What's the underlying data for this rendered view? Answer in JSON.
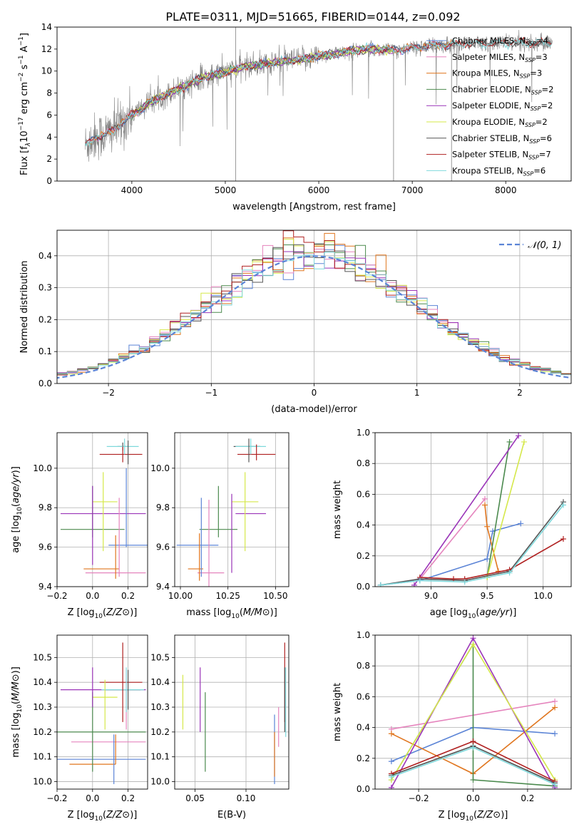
{
  "title": "PLATE=0311, MJD=51665, FIBERID=0144, z=0.092",
  "colors": {
    "Chabrier MILES": "#5b84d6",
    "Salpeter MILES": "#e584bd",
    "Kroupa MILES": "#e0761f",
    "Chabrier ELODIE": "#4b8a4e",
    "Salpeter ELODIE": "#9a34b8",
    "Kroupa ELODIE": "#d5e84a",
    "Chabrier STELIB": "#555555",
    "Salpeter STELIB": "#b02020",
    "Kroupa STELIB": "#7fd9dc",
    "normal": "#5b84d6",
    "spectrum": "#808080"
  },
  "chart_data": [
    {
      "id": "spectrum",
      "type": "line",
      "xlabel": "wavelength [Angstrom, rest frame]",
      "ylabel_pre": "Flux [f",
      "ylabel_sub": "λ",
      "ylabel_mid": "10",
      "ylabel_sup1": "−17",
      "ylabel_mid2": " erg cm",
      "ylabel_sup2": "−2",
      "ylabel_mid3": " s",
      "ylabel_sup3": "−1",
      "ylabel_mid4": " A",
      "ylabel_sup4": "−1",
      "ylabel_end": "]",
      "xlim": [
        3200,
        8700
      ],
      "ylim": [
        0,
        14
      ],
      "xticks": [
        4000,
        5000,
        6000,
        7000,
        8000
      ],
      "yticks": [
        0,
        2,
        4,
        6,
        8,
        10,
        12,
        14
      ],
      "legend": [
        {
          "name": "Chabrier MILES",
          "n": "4"
        },
        {
          "name": "Salpeter MILES",
          "n": "3"
        },
        {
          "name": "Kroupa MILES",
          "n": "3"
        },
        {
          "name": "Chabrier ELODIE",
          "n": "2"
        },
        {
          "name": "Salpeter ELODIE",
          "n": "2"
        },
        {
          "name": "Kroupa ELODIE",
          "n": "2"
        },
        {
          "name": "Chabrier STELIB",
          "n": "6"
        },
        {
          "name": "Salpeter STELIB",
          "n": "7"
        },
        {
          "name": "Kroupa STELIB",
          "n": "6"
        }
      ],
      "legend_n_prefix": "N",
      "legend_n_sub": "SSP",
      "legend_placement": "right",
      "series_profile": {
        "wavelength": [
          3500,
          3600,
          3700,
          3800,
          3900,
          4000,
          4200,
          4400,
          4600,
          4800,
          5000,
          5200,
          5400,
          5600,
          5800,
          6000,
          6200,
          6400,
          6600,
          6800,
          7000,
          7200,
          7400,
          7600,
          7800,
          8000,
          8200,
          8500
        ],
        "flux": [
          3.2,
          4.0,
          4.2,
          4.6,
          5.3,
          6.0,
          7.2,
          8.0,
          8.8,
          9.5,
          9.9,
          10.4,
          10.6,
          10.9,
          11.0,
          11.4,
          11.6,
          11.9,
          12.0,
          11.9,
          12.1,
          12.3,
          12.4,
          12.5,
          12.5,
          12.6,
          12.6,
          12.6
        ]
      },
      "spikes": [
        {
          "x": 5110,
          "y0": 0,
          "y1": 14
        },
        {
          "x": 6800,
          "y0": 0,
          "y1": 12
        },
        {
          "x": 7420,
          "y0": 0,
          "y1": 12.4
        }
      ]
    },
    {
      "id": "residuals",
      "type": "histogram",
      "xlabel": "(data-model)/error",
      "ylabel": "Normed distribution",
      "xlim": [
        -2.5,
        2.5
      ],
      "ylim": [
        0,
        0.48
      ],
      "xticks": [
        -2,
        -1,
        0,
        1,
        2
      ],
      "yticks": [
        0,
        0.1,
        0.2,
        0.3,
        0.4
      ],
      "grid": true,
      "legend_label": "𝒩(0, 1)",
      "legend_placement": "top-right",
      "bin_width": 0.1
    },
    {
      "id": "age_vs_Z",
      "type": "errorbar",
      "xlabel": "Z [log10(Z/Z⊙)]",
      "ylabel": "age [log10(age/yr)]",
      "xlim": [
        -0.2,
        0.31
      ],
      "ylim": [
        9.4,
        10.18
      ],
      "xticks": [
        -0.2,
        0.0,
        0.2
      ],
      "yticks": [
        9.4,
        9.6,
        9.8,
        10.0
      ],
      "points": [
        {
          "series": "Chabrier MILES",
          "x": 0.2,
          "xerr": 0.11,
          "y": 9.61,
          "yerr": 0.0
        },
        {
          "series": "Salpeter MILES",
          "x": 0.13,
          "xerr": 0.17,
          "y": 9.47,
          "yerr": 0.0
        },
        {
          "series": "Kroupa MILES",
          "x": 0.05,
          "xerr": 0.1,
          "y": 9.49,
          "yerr": 0.0
        },
        {
          "series": "Chabrier ELODIE",
          "x": 0.0,
          "xerr": 0.18,
          "y": 9.69,
          "yerr": 0.0
        },
        {
          "series": "Salpeter ELODIE",
          "x": 0.06,
          "xerr": 0.24,
          "y": 9.77,
          "yerr": 0.0
        },
        {
          "series": "Kroupa ELODIE",
          "x": 0.07,
          "xerr": 0.07,
          "y": 9.83,
          "yerr": 0.0
        },
        {
          "series": "Chabrier STELIB",
          "x": 0.17,
          "xerr": 0.03,
          "y": 10.11,
          "yerr": 0.02
        },
        {
          "series": "Salpeter STELIB",
          "x": 0.16,
          "xerr": 0.12,
          "y": 10.07,
          "yerr": 0.0
        },
        {
          "series": "Kroupa STELIB",
          "x": 0.17,
          "xerr": 0.09,
          "y": 10.11,
          "yerr": 0.0
        },
        {
          "series": "Chabrier MILES",
          "x": 0.19,
          "xerr": 0.0,
          "y": 9.8,
          "yerr": 0.2
        },
        {
          "series": "Salpeter MILES",
          "x": 0.15,
          "xerr": 0.0,
          "y": 9.65,
          "yerr": 0.2
        },
        {
          "series": "Kroupa MILES",
          "x": 0.13,
          "xerr": 0.0,
          "y": 9.55,
          "yerr": 0.11
        },
        {
          "series": "Chabrier ELODIE",
          "x": 0.0,
          "xerr": 0.0,
          "y": 9.78,
          "yerr": 0.13
        },
        {
          "series": "Salpeter ELODIE",
          "x": 0.0,
          "xerr": 0.0,
          "y": 9.71,
          "yerr": 0.2
        },
        {
          "series": "Kroupa ELODIE",
          "x": 0.06,
          "xerr": 0.0,
          "y": 9.78,
          "yerr": 0.2
        },
        {
          "series": "Chabrier STELIB",
          "x": 0.2,
          "xerr": 0.0,
          "y": 10.08,
          "yerr": 0.06
        },
        {
          "series": "Salpeter STELIB",
          "x": 0.17,
          "xerr": 0.0,
          "y": 10.07,
          "yerr": 0.04
        },
        {
          "series": "Kroupa STELIB",
          "x": 0.18,
          "xerr": 0.0,
          "y": 10.11,
          "yerr": 0.04
        }
      ]
    },
    {
      "id": "age_vs_mass",
      "type": "errorbar",
      "xlabel": "mass [log10(M/M⊙)]",
      "ylabel": "",
      "xlim": [
        9.97,
        10.57
      ],
      "ylim": [
        9.4,
        10.18
      ],
      "xticks": [
        10.0,
        10.25,
        10.5
      ],
      "ytick_labels_only": [
        9.4,
        9.6,
        9.8,
        10.0
      ],
      "points": [
        {
          "series": "Chabrier MILES",
          "x": 10.09,
          "xerr": 0.11,
          "y": 9.61,
          "yerr": 0.0
        },
        {
          "series": "Salpeter MILES",
          "x": 10.16,
          "xerr": 0.07,
          "y": 9.47,
          "yerr": 0.0
        },
        {
          "series": "Kroupa MILES",
          "x": 10.08,
          "xerr": 0.04,
          "y": 9.49,
          "yerr": 0.0
        },
        {
          "series": "Chabrier ELODIE",
          "x": 10.2,
          "xerr": 0.1,
          "y": 9.69,
          "yerr": 0.0
        },
        {
          "series": "Salpeter ELODIE",
          "x": 10.37,
          "xerr": 0.08,
          "y": 9.77,
          "yerr": 0.0
        },
        {
          "series": "Kroupa ELODIE",
          "x": 10.34,
          "xerr": 0.07,
          "y": 9.83,
          "yerr": 0.0
        },
        {
          "series": "Chabrier STELIB",
          "x": 10.35,
          "xerr": 0.07,
          "y": 10.11,
          "yerr": 0.0
        },
        {
          "series": "Salpeter STELIB",
          "x": 10.4,
          "xerr": 0.1,
          "y": 10.07,
          "yerr": 0.0
        },
        {
          "series": "Kroupa STELIB",
          "x": 10.37,
          "xerr": 0.08,
          "y": 10.11,
          "yerr": 0.0
        },
        {
          "series": "Chabrier MILES",
          "x": 10.11,
          "xerr": 0.0,
          "y": 9.65,
          "yerr": 0.2
        },
        {
          "series": "Salpeter MILES",
          "x": 10.15,
          "xerr": 0.0,
          "y": 9.6,
          "yerr": 0.24
        },
        {
          "series": "Kroupa MILES",
          "x": 10.1,
          "xerr": 0.0,
          "y": 9.55,
          "yerr": 0.12
        },
        {
          "series": "Chabrier ELODIE",
          "x": 10.2,
          "xerr": 0.0,
          "y": 9.78,
          "yerr": 0.13
        },
        {
          "series": "Salpeter ELODIE",
          "x": 10.27,
          "xerr": 0.0,
          "y": 9.67,
          "yerr": 0.2
        },
        {
          "series": "Kroupa ELODIE",
          "x": 10.34,
          "xerr": 0.0,
          "y": 9.78,
          "yerr": 0.2
        },
        {
          "series": "Chabrier STELIB",
          "x": 10.36,
          "xerr": 0.0,
          "y": 10.09,
          "yerr": 0.06
        },
        {
          "series": "Salpeter STELIB",
          "x": 10.4,
          "xerr": 0.0,
          "y": 10.08,
          "yerr": 0.04
        },
        {
          "series": "Kroupa STELIB",
          "x": 10.37,
          "xerr": 0.0,
          "y": 10.11,
          "yerr": 0.04
        }
      ]
    },
    {
      "id": "massweight_vs_age",
      "type": "line",
      "xlabel": "age [log10(age/yr)]",
      "ylabel": "mass weight",
      "xlim": [
        8.5,
        10.25
      ],
      "ylim": [
        0,
        1
      ],
      "xticks": [
        9.0,
        9.5,
        10.0
      ],
      "yticks": [
        0,
        0.2,
        0.4,
        0.6,
        0.8,
        1.0
      ],
      "grid": true,
      "series": [
        {
          "name": "Chabrier MILES",
          "x": [
            8.55,
            8.9,
            9.5,
            9.55,
            9.8
          ],
          "values": [
            0.01,
            0.04,
            0.18,
            0.36,
            0.41
          ]
        },
        {
          "name": "Salpeter MILES",
          "x": [
            8.9,
            9.48
          ],
          "values": [
            0.05,
            0.57
          ]
        },
        {
          "name": "Kroupa MILES",
          "x": [
            9.48,
            9.5,
            9.6
          ],
          "values": [
            0.53,
            0.39,
            0.1
          ]
        },
        {
          "name": "Chabrier ELODIE",
          "x": [
            9.5,
            9.7
          ],
          "values": [
            0.06,
            0.94
          ]
        },
        {
          "name": "Salpeter ELODIE",
          "x": [
            8.85,
            9.78
          ],
          "values": [
            0.01,
            0.98
          ]
        },
        {
          "name": "Kroupa ELODIE",
          "x": [
            9.5,
            9.83
          ],
          "values": [
            0.06,
            0.94
          ]
        },
        {
          "name": "Chabrier STELIB",
          "x": [
            8.55,
            8.9,
            9.3,
            9.7,
            10.18
          ],
          "values": [
            0.01,
            0.05,
            0.04,
            0.1,
            0.55
          ]
        },
        {
          "name": "Salpeter STELIB",
          "x": [
            8.9,
            9.2,
            9.3,
            9.7,
            10.18
          ],
          "values": [
            0.06,
            0.05,
            0.05,
            0.11,
            0.31
          ]
        },
        {
          "name": "Kroupa STELIB",
          "x": [
            8.55,
            8.9,
            9.3,
            9.7,
            10.18
          ],
          "values": [
            0.01,
            0.04,
            0.03,
            0.09,
            0.53
          ]
        }
      ]
    },
    {
      "id": "mass_vs_Z",
      "type": "errorbar",
      "xlabel": "Z [log10(Z/Z⊙)]",
      "ylabel": "mass [log10(M/M⊙)]",
      "xlim": [
        -0.2,
        0.31
      ],
      "ylim": [
        9.97,
        10.59
      ],
      "xticks": [
        -0.2,
        0.0,
        0.2
      ],
      "yticks": [
        10.0,
        10.1,
        10.2,
        10.3,
        10.4,
        10.5
      ],
      "points": [
        {
          "series": "Chabrier MILES",
          "x": 0.05,
          "xerr": 0.25,
          "y": 10.09,
          "yerr": 0.0
        },
        {
          "series": "Salpeter MILES",
          "x": 0.09,
          "xerr": 0.21,
          "y": 10.16,
          "yerr": 0.0
        },
        {
          "series": "Kroupa MILES",
          "x": 0.0,
          "xerr": 0.13,
          "y": 10.07,
          "yerr": 0.0
        },
        {
          "series": "Chabrier ELODIE",
          "x": 0.0,
          "xerr": 0.3,
          "y": 10.2,
          "yerr": 0.0
        },
        {
          "series": "Salpeter ELODIE",
          "x": 0.06,
          "xerr": 0.24,
          "y": 10.37,
          "yerr": 0.0
        },
        {
          "series": "Kroupa ELODIE",
          "x": 0.07,
          "xerr": 0.07,
          "y": 10.34,
          "yerr": 0.0
        },
        {
          "series": "Chabrier STELIB",
          "x": 0.17,
          "xerr": 0.1,
          "y": 10.37,
          "yerr": 0.0
        },
        {
          "series": "Salpeter STELIB",
          "x": 0.16,
          "xerr": 0.12,
          "y": 10.4,
          "yerr": 0.0
        },
        {
          "series": "Kroupa STELIB",
          "x": 0.17,
          "xerr": 0.12,
          "y": 10.37,
          "yerr": 0.0
        },
        {
          "series": "Chabrier MILES",
          "x": 0.12,
          "xerr": 0.0,
          "y": 10.09,
          "yerr": 0.1
        },
        {
          "series": "Salpeter MILES",
          "x": 0.19,
          "xerr": 0.0,
          "y": 10.33,
          "yerr": 0.12
        },
        {
          "series": "Kroupa MILES",
          "x": 0.13,
          "xerr": 0.0,
          "y": 10.13,
          "yerr": 0.06
        },
        {
          "series": "Chabrier ELODIE",
          "x": 0.0,
          "xerr": 0.0,
          "y": 10.2,
          "yerr": 0.16
        },
        {
          "series": "Salpeter ELODIE",
          "x": 0.0,
          "xerr": 0.0,
          "y": 10.38,
          "yerr": 0.08
        },
        {
          "series": "Kroupa ELODIE",
          "x": 0.07,
          "xerr": 0.0,
          "y": 10.31,
          "yerr": 0.1
        },
        {
          "series": "Chabrier STELIB",
          "x": 0.2,
          "xerr": 0.0,
          "y": 10.37,
          "yerr": 0.08
        },
        {
          "series": "Salpeter STELIB",
          "x": 0.17,
          "xerr": 0.0,
          "y": 10.4,
          "yerr": 0.16
        },
        {
          "series": "Kroupa STELIB",
          "x": 0.19,
          "xerr": 0.0,
          "y": 10.37,
          "yerr": 0.09
        }
      ]
    },
    {
      "id": "mass_vs_EBV",
      "type": "errorbar",
      "xlabel": "E(B-V)",
      "ylabel": "",
      "xlim": [
        0.03,
        0.142
      ],
      "ylim": [
        9.97,
        10.59
      ],
      "xticks": [
        0.05,
        0.1
      ],
      "ytick_labels_only": [
        10.0,
        10.1,
        10.2,
        10.3,
        10.4,
        10.5
      ],
      "points": [
        {
          "series": "Kroupa ELODIE",
          "x": 0.038,
          "y": 10.32,
          "yerr": 0.11
        },
        {
          "series": "Salpeter ELODIE",
          "x": 0.055,
          "y": 10.33,
          "yerr": 0.13
        },
        {
          "series": "Chabrier ELODIE",
          "x": 0.06,
          "y": 10.2,
          "yerr": 0.16
        },
        {
          "series": "Chabrier MILES",
          "x": 0.128,
          "y": 10.13,
          "yerr": 0.14
        },
        {
          "series": "Kroupa MILES",
          "x": 0.128,
          "y": 10.11,
          "yerr": 0.09
        },
        {
          "series": "Salpeter MILES",
          "x": 0.132,
          "y": 10.22,
          "yerr": 0.08
        },
        {
          "series": "Salpeter STELIB",
          "x": 0.138,
          "y": 10.4,
          "yerr": 0.16
        },
        {
          "series": "Kroupa STELIB",
          "x": 0.139,
          "y": 10.32,
          "yerr": 0.14
        },
        {
          "series": "Chabrier STELIB",
          "x": 0.138,
          "y": 10.33,
          "yerr": 0.13
        }
      ]
    },
    {
      "id": "massweight_vs_Z",
      "type": "line",
      "xlabel": "Z [log10(Z/Z⊙)]",
      "ylabel": "mass weight",
      "xlim": [
        -0.36,
        0.36
      ],
      "ylim": [
        0,
        1
      ],
      "xticks": [
        -0.2,
        0.0,
        0.2
      ],
      "yticks": [
        0,
        0.2,
        0.4,
        0.6,
        0.8,
        1.0
      ],
      "grid": true,
      "series": [
        {
          "name": "Chabrier MILES",
          "x": [
            -0.3,
            0.0,
            0.3
          ],
          "values": [
            0.18,
            0.4,
            0.36
          ]
        },
        {
          "name": "Salpeter MILES",
          "x": [
            -0.3,
            0.3
          ],
          "values": [
            0.39,
            0.57
          ]
        },
        {
          "name": "Kroupa MILES",
          "x": [
            -0.3,
            0.0,
            0.3
          ],
          "values": [
            0.36,
            0.1,
            0.53
          ]
        },
        {
          "name": "Chabrier ELODIE",
          "x": [
            -0.3,
            0.0,
            0.0,
            0.3
          ],
          "values": [
            0.06,
            0.94,
            0.06,
            0.02
          ]
        },
        {
          "name": "Salpeter ELODIE",
          "x": [
            -0.3,
            0.0,
            0.3
          ],
          "values": [
            0.01,
            0.98,
            0.01
          ]
        },
        {
          "name": "Kroupa ELODIE",
          "x": [
            -0.3,
            0.0,
            0.3
          ],
          "values": [
            0.06,
            0.94,
            0.06
          ]
        },
        {
          "name": "Chabrier STELIB",
          "x": [
            -0.3,
            0.0,
            0.3
          ],
          "values": [
            0.09,
            0.28,
            0.04
          ]
        },
        {
          "name": "Salpeter STELIB",
          "x": [
            -0.3,
            0.0,
            0.3
          ],
          "values": [
            0.1,
            0.31,
            0.05
          ]
        },
        {
          "name": "Kroupa STELIB",
          "x": [
            -0.3,
            0.0,
            0.3
          ],
          "values": [
            0.08,
            0.27,
            0.03
          ]
        }
      ]
    }
  ]
}
